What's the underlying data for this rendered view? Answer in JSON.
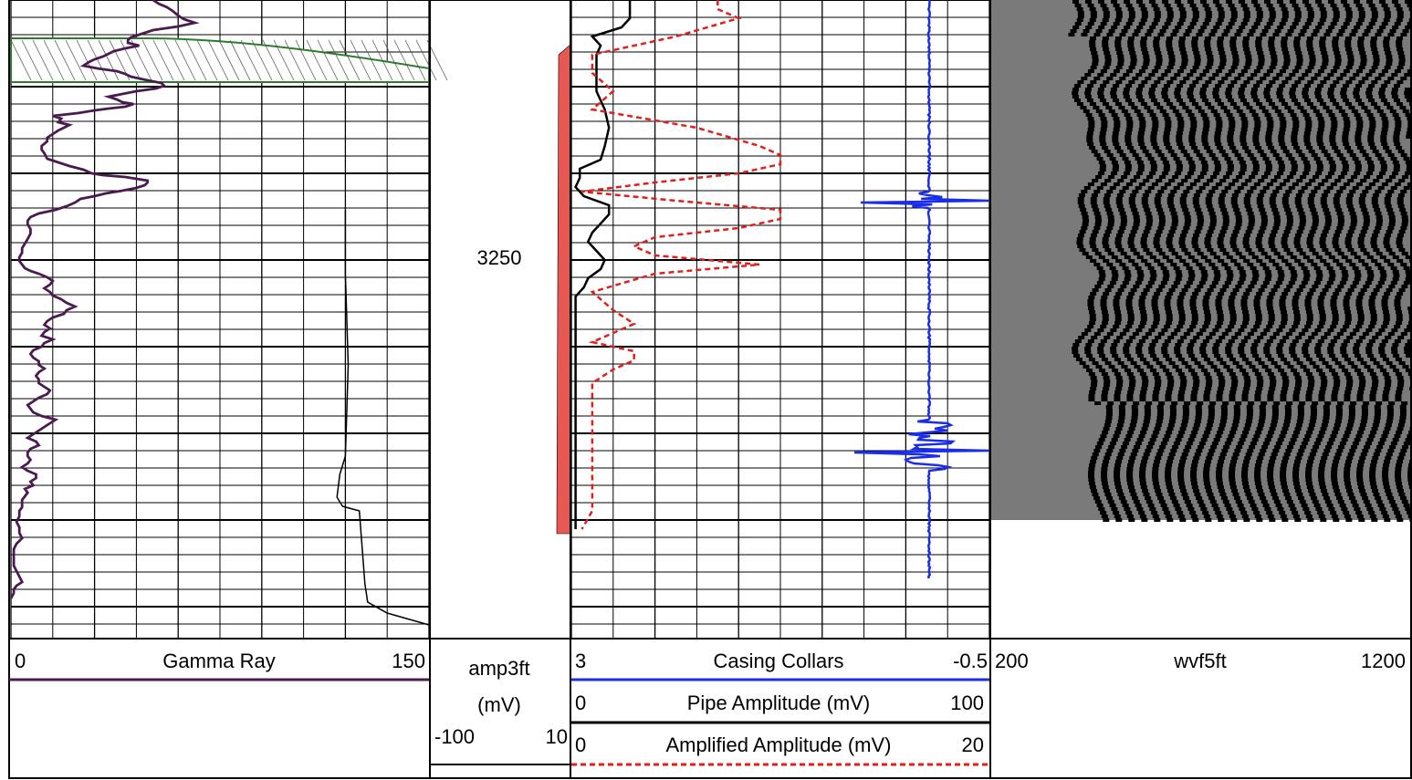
{
  "depth_track": {
    "depth_label": "3250",
    "amp_header": {
      "name": "amp3ft",
      "unit": "(mV)",
      "min": "-100",
      "max": "10"
    }
  },
  "track1": {
    "curve_name": "Gamma Ray",
    "scale_min": "0",
    "scale_max": "150",
    "curve_color": "#4b1a4f"
  },
  "track2": {
    "curves": [
      {
        "name": "Casing Collars",
        "scale_min": "3",
        "scale_max": "-0.5",
        "color": "#1a2eea"
      },
      {
        "name": "Pipe Amplitude (mV)",
        "scale_min": "0",
        "scale_max": "100",
        "color": "#000000"
      },
      {
        "name": "Amplified Amplitude (mV)",
        "scale_min": "0",
        "scale_max": "20",
        "color": "#e0201a"
      }
    ]
  },
  "track3": {
    "curve_name": "wvf5ft",
    "scale_min": "200",
    "scale_max": "1200"
  },
  "chart_data": {
    "type": "line",
    "depth_labels": [
      3250
    ],
    "series": [
      {
        "name": "Gamma Ray",
        "scale": [
          0,
          150
        ],
        "color": "#4b1a4f",
        "points": [
          [
            0,
            51
          ],
          [
            4,
            53
          ],
          [
            8,
            56
          ],
          [
            12,
            58
          ],
          [
            17,
            60
          ],
          [
            21,
            62
          ],
          [
            25,
            66
          ],
          [
            29,
            60
          ],
          [
            33,
            51
          ],
          [
            38,
            46
          ],
          [
            41,
            43
          ],
          [
            44,
            42
          ],
          [
            47,
            42
          ],
          [
            50,
            46
          ],
          [
            53,
            41
          ],
          [
            56,
            37
          ],
          [
            59,
            35
          ],
          [
            62,
            33
          ],
          [
            65,
            30
          ],
          [
            68,
            28
          ],
          [
            72,
            26
          ],
          [
            75,
            31
          ],
          [
            78,
            38
          ],
          [
            81,
            41
          ],
          [
            84,
            43
          ],
          [
            88,
            49
          ],
          [
            91,
            54
          ],
          [
            94,
            55
          ],
          [
            97,
            52
          ],
          [
            100,
            45
          ],
          [
            103,
            40
          ],
          [
            106,
            35
          ],
          [
            109,
            38
          ],
          [
            112,
            40
          ],
          [
            114,
            44
          ],
          [
            117,
            41
          ],
          [
            119,
            35
          ],
          [
            121,
            30
          ],
          [
            124,
            24
          ],
          [
            127,
            15
          ],
          [
            130,
            18
          ],
          [
            134,
            17
          ],
          [
            137,
            21
          ],
          [
            140,
            19
          ],
          [
            143,
            17
          ],
          [
            147,
            15
          ],
          [
            151,
            13
          ],
          [
            155,
            13
          ],
          [
            160,
            11
          ],
          [
            164,
            11
          ],
          [
            168,
            12
          ],
          [
            174,
            13
          ],
          [
            178,
            17
          ],
          [
            182,
            21
          ],
          [
            186,
            26
          ],
          [
            190,
            29
          ],
          [
            192,
            33
          ],
          [
            193,
            37
          ],
          [
            194,
            41
          ],
          [
            196,
            45
          ],
          [
            198,
            49
          ],
          [
            200,
            49
          ],
          [
            203,
            48
          ],
          [
            206,
            45
          ],
          [
            209,
            40
          ],
          [
            212,
            34
          ],
          [
            215,
            30
          ],
          [
            218,
            25
          ],
          [
            222,
            23
          ],
          [
            226,
            20
          ],
          [
            230,
            16
          ],
          [
            234,
            10
          ],
          [
            238,
            7
          ],
          [
            242,
            6
          ],
          [
            246,
            6
          ],
          [
            251,
            7
          ],
          [
            256,
            7
          ],
          [
            262,
            6
          ],
          [
            267,
            5
          ],
          [
            272,
            4
          ],
          [
            277,
            4
          ],
          [
            282,
            3
          ],
          [
            286,
            3
          ],
          [
            290,
            4
          ],
          [
            294,
            5
          ],
          [
            297,
            7
          ],
          [
            300,
            10
          ],
          [
            304,
            13
          ],
          [
            308,
            15
          ],
          [
            312,
            14
          ],
          [
            316,
            12
          ],
          [
            320,
            14
          ],
          [
            324,
            15
          ],
          [
            328,
            18
          ],
          [
            332,
            20
          ],
          [
            336,
            23
          ],
          [
            340,
            20
          ],
          [
            344,
            19
          ],
          [
            348,
            15
          ],
          [
            352,
            13
          ],
          [
            356,
            12
          ],
          [
            360,
            14
          ],
          [
            364,
            12
          ],
          [
            368,
            11
          ],
          [
            372,
            15
          ],
          [
            376,
            12
          ],
          [
            380,
            11
          ],
          [
            384,
            8
          ],
          [
            388,
            7
          ],
          [
            392,
            8
          ],
          [
            396,
            10
          ],
          [
            400,
            10
          ],
          [
            404,
            12
          ],
          [
            408,
            10
          ],
          [
            412,
            9
          ],
          [
            416,
            10
          ],
          [
            420,
            10
          ],
          [
            424,
            12
          ],
          [
            428,
            14
          ],
          [
            432,
            13
          ],
          [
            436,
            10
          ],
          [
            440,
            8
          ],
          [
            444,
            6
          ],
          [
            448,
            7
          ],
          [
            452,
            8
          ],
          [
            456,
            11
          ],
          [
            460,
            16
          ],
          [
            464,
            14
          ],
          [
            468,
            12
          ],
          [
            472,
            10
          ],
          [
            476,
            8
          ],
          [
            480,
            6
          ],
          [
            484,
            9
          ],
          [
            488,
            10
          ],
          [
            492,
            7
          ],
          [
            496,
            6
          ],
          [
            500,
            6
          ],
          [
            504,
            7
          ],
          [
            508,
            6
          ],
          [
            512,
            4
          ],
          [
            516,
            6
          ],
          [
            520,
            9
          ],
          [
            524,
            9
          ],
          [
            528,
            7
          ],
          [
            532,
            8
          ],
          [
            536,
            5
          ],
          [
            540,
            6
          ],
          [
            544,
            5
          ],
          [
            548,
            4
          ],
          [
            552,
            4
          ],
          [
            556,
            4
          ],
          [
            560,
            3
          ],
          [
            566,
            3
          ],
          [
            572,
            2
          ],
          [
            578,
            3
          ],
          [
            584,
            3
          ],
          [
            590,
            4
          ],
          [
            596,
            2
          ],
          [
            602,
            1
          ],
          [
            608,
            1
          ],
          [
            614,
            1
          ],
          [
            620,
            1
          ],
          [
            626,
            2
          ],
          [
            632,
            3
          ],
          [
            638,
            4
          ],
          [
            642,
            2
          ],
          [
            646,
            1
          ],
          [
            650,
            1
          ],
          [
            656,
            0
          ]
        ]
      },
      {
        "name": "Casing Collars",
        "scale": [
          3,
          -0.5
        ],
        "color": "#1a2eea",
        "points": [
          [
            0,
            -0.2
          ],
          [
            100,
            -0.22
          ],
          [
            200,
            -0.2
          ],
          [
            212,
            -0.1
          ],
          [
            218,
            0.6
          ],
          [
            222,
            0.6
          ],
          [
            226,
            -0.2
          ],
          [
            300,
            -0.2
          ],
          [
            400,
            -0.2
          ],
          [
            460,
            -0.05
          ],
          [
            470,
            0.6
          ],
          [
            485,
            0.1
          ],
          [
            495,
            0.55
          ],
          [
            500,
            0.1
          ],
          [
            510,
            0.25
          ],
          [
            520,
            -0.2
          ],
          [
            600,
            -0.2
          ],
          [
            635,
            -0.2
          ]
        ]
      },
      {
        "name": "Pipe Amplitude (mV)",
        "scale": [
          0,
          100
        ],
        "color": "#000000",
        "points": [
          [
            0,
            14
          ],
          [
            10,
            14
          ],
          [
            20,
            14
          ],
          [
            30,
            12
          ],
          [
            40,
            5
          ],
          [
            50,
            7
          ],
          [
            60,
            6
          ],
          [
            80,
            6
          ],
          [
            100,
            6
          ],
          [
            120,
            8
          ],
          [
            140,
            9
          ],
          [
            160,
            8
          ],
          [
            175,
            7
          ],
          [
            185,
            2
          ],
          [
            195,
            2
          ],
          [
            205,
            1
          ],
          [
            215,
            3
          ],
          [
            225,
            9
          ],
          [
            235,
            9
          ],
          [
            245,
            7
          ],
          [
            255,
            5
          ],
          [
            265,
            4
          ],
          [
            275,
            6
          ],
          [
            285,
            8
          ],
          [
            295,
            7
          ],
          [
            305,
            4
          ],
          [
            315,
            3
          ],
          [
            325,
            1
          ],
          [
            335,
            1
          ],
          [
            345,
            1
          ],
          [
            360,
            1
          ],
          [
            380,
            1
          ],
          [
            400,
            1
          ],
          [
            420,
            1
          ],
          [
            440,
            1
          ],
          [
            460,
            1
          ],
          [
            480,
            1
          ],
          [
            500,
            1
          ],
          [
            520,
            1
          ],
          [
            540,
            1
          ],
          [
            560,
            1
          ],
          [
            580,
            1
          ]
        ]
      },
      {
        "name": "Amplified Amplitude (mV)",
        "scale": [
          0,
          20
        ],
        "color": "#e0201a",
        "points": [
          [
            0,
            7
          ],
          [
            10,
            7
          ],
          [
            20,
            8
          ],
          [
            40,
            5
          ],
          [
            60,
            1
          ],
          [
            80,
            1
          ],
          [
            100,
            2
          ],
          [
            120,
            1
          ],
          [
            140,
            6
          ],
          [
            160,
            9
          ],
          [
            170,
            10
          ],
          [
            180,
            10
          ],
          [
            190,
            8
          ],
          [
            200,
            4
          ],
          [
            210,
            0.5
          ],
          [
            220,
            5
          ],
          [
            230,
            10
          ],
          [
            240,
            10
          ],
          [
            250,
            8
          ],
          [
            260,
            4
          ],
          [
            270,
            3
          ],
          [
            280,
            4
          ],
          [
            290,
            9
          ],
          [
            300,
            4
          ],
          [
            320,
            1
          ],
          [
            340,
            2
          ],
          [
            355,
            3
          ],
          [
            365,
            2
          ],
          [
            375,
            1
          ],
          [
            385,
            3
          ],
          [
            395,
            3
          ],
          [
            405,
            2
          ],
          [
            420,
            1
          ],
          [
            440,
            1
          ],
          [
            460,
            1
          ],
          [
            480,
            1
          ],
          [
            500,
            1
          ],
          [
            520,
            1
          ],
          [
            540,
            1
          ],
          [
            560,
            1
          ],
          [
            580,
            0.5
          ]
        ]
      }
    ],
    "background_curve": {
      "name": "",
      "scale": [
        0,
        150
      ],
      "color": "#000000",
      "points": [
        [
          230,
          120
        ],
        [
          300,
          120
        ],
        [
          400,
          121
        ],
        [
          500,
          120
        ],
        [
          520,
          118
        ],
        [
          545,
          117
        ],
        [
          555,
          119
        ],
        [
          560,
          125
        ],
        [
          640,
          127
        ],
        [
          660,
          128
        ],
        [
          672,
          135
        ],
        [
          685,
          150
        ]
      ]
    },
    "shaded_band": {
      "top_depth": 42,
      "bottom_depth": 90,
      "color": "#2a7f2a"
    },
    "waveform": {
      "name": "wvf5ft",
      "range": [
        200,
        1200
      ],
      "rows": 570
    }
  }
}
